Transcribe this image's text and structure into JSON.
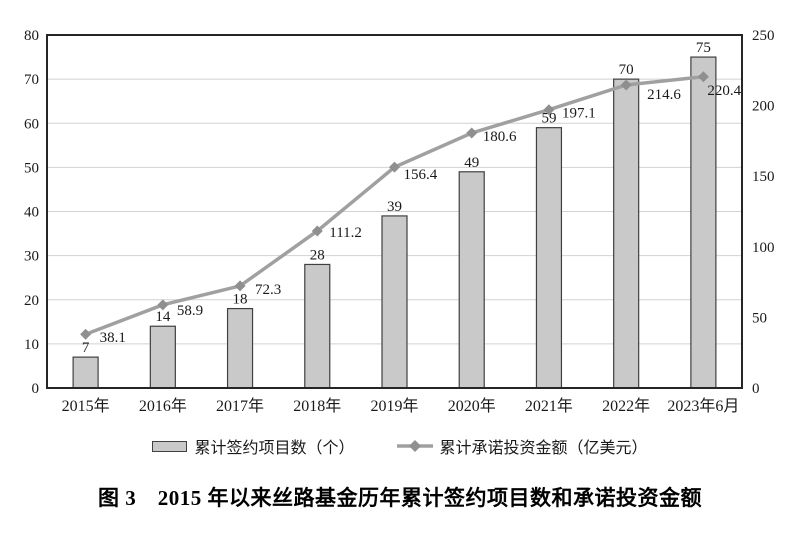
{
  "caption": "图 3　2015 年以来丝路基金历年累计签约项目数和承诺投资金额",
  "legend": {
    "bar_label": "累计签约项目数（个）",
    "line_label": "累计承诺投资金额（亿美元）"
  },
  "colors": {
    "bar_fill": "#c9c9c9",
    "bar_border": "#404040",
    "line": "#a0a0a0",
    "marker": "#8f8f8f",
    "grid": "#d2d2d2",
    "axis_border": "#262626",
    "text": "#1a1a1a"
  },
  "chart_data": {
    "type": "bar",
    "subtype": "bar-line-combo",
    "title": "",
    "categories": [
      "2015年",
      "2016年",
      "2017年",
      "2018年",
      "2019年",
      "2020年",
      "2021年",
      "2022年",
      "2023年6月"
    ],
    "series": [
      {
        "name": "累计签约项目数（个）",
        "type": "bar",
        "axis": "left",
        "values": [
          7,
          14,
          18,
          28,
          39,
          49,
          59,
          70,
          75
        ]
      },
      {
        "name": "累计承诺投资金额（亿美元）",
        "type": "line",
        "axis": "right",
        "values": [
          38.1,
          58.9,
          72.3,
          111.2,
          156.4,
          180.6,
          197.1,
          214.6,
          220.4
        ]
      }
    ],
    "left_axis": {
      "min": 0,
      "max": 80,
      "step": 10,
      "ticks": [
        0,
        10,
        20,
        30,
        40,
        50,
        60,
        70,
        80
      ]
    },
    "right_axis": {
      "min": 0,
      "max": 250,
      "step": 50,
      "ticks": [
        0,
        50,
        100,
        150,
        200,
        250
      ]
    },
    "grid": true,
    "legend_position": "bottom",
    "data_labels": true
  }
}
